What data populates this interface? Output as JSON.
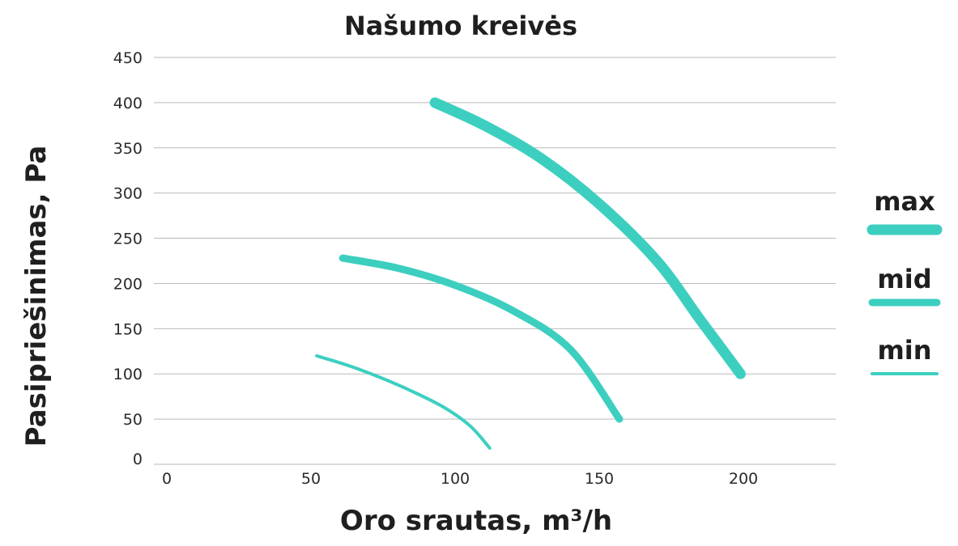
{
  "chart_data": {
    "type": "line",
    "title": "Našumo kreivės",
    "xlabel": "Oro srautas, m³/h",
    "ylabel": "Pasipriešinimas, Pa",
    "xlim": [
      0,
      230
    ],
    "ylim": [
      0,
      450
    ],
    "x_ticks": [
      "0",
      "50",
      "100",
      "150",
      "200"
    ],
    "y_ticks": [
      "0",
      "50",
      "100",
      "150",
      "200",
      "250",
      "300",
      "350",
      "400",
      "450"
    ],
    "grid": "horizontal",
    "legend_position": "right",
    "series": [
      {
        "name": "max",
        "color": "#3ccfc0",
        "x": [
          93,
          110,
          130,
          150,
          170,
          185,
          199
        ],
        "y": [
          400,
          375,
          338,
          288,
          225,
          160,
          100
        ]
      },
      {
        "name": "mid",
        "color": "#3ccfc0",
        "x": [
          61,
          80,
          100,
          120,
          140,
          157
        ],
        "y": [
          228,
          217,
          198,
          170,
          127,
          50
        ]
      },
      {
        "name": "min",
        "color": "#3ccfc0",
        "x": [
          52,
          65,
          80,
          95,
          105,
          112
        ],
        "y": [
          120,
          107,
          88,
          65,
          43,
          18
        ]
      }
    ]
  }
}
